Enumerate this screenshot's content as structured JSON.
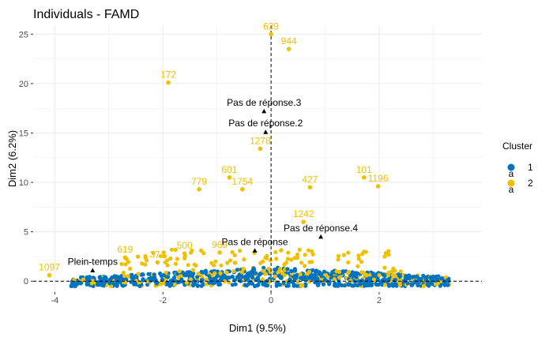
{
  "chart_data": {
    "type": "scatter",
    "title": "Individuals - FAMD",
    "xlabel": "Dim1 (9.5%)",
    "ylabel": "Dim2 (6.2%)",
    "xlim": [
      -4.4,
      3.9
    ],
    "ylim": [
      -1.1,
      25.9
    ],
    "x_ticks": [
      -4,
      -2,
      0,
      2
    ],
    "y_ticks": [
      0,
      5,
      10,
      15,
      20,
      25
    ],
    "grid": true,
    "legend": {
      "title": "Cluster",
      "position": "right",
      "entries": [
        {
          "label": "1",
          "color": "#0073C2"
        },
        {
          "label": "2",
          "color": "#EFC000"
        }
      ],
      "glyph": "a"
    },
    "colors": {
      "1": "#0073C2",
      "2": "#EFC000",
      "supplementary": "#000000"
    },
    "reference_lines": {
      "x": 0,
      "y": 0,
      "style": "dashed"
    },
    "labeled_points": [
      {
        "label": "639",
        "x": 0.0,
        "y": 25.0,
        "cluster": "2"
      },
      {
        "label": "944",
        "x": 0.33,
        "y": 23.5,
        "cluster": "2"
      },
      {
        "label": "172",
        "x": -1.9,
        "y": 20.1,
        "cluster": "2"
      },
      {
        "label": "1278",
        "x": -0.2,
        "y": 13.4,
        "cluster": "2"
      },
      {
        "label": "601",
        "x": -0.77,
        "y": 10.5,
        "cluster": "2"
      },
      {
        "label": "779",
        "x": -1.33,
        "y": 9.3,
        "cluster": "2"
      },
      {
        "label": "1754",
        "x": -0.53,
        "y": 9.3,
        "cluster": "2"
      },
      {
        "label": "427",
        "x": 0.72,
        "y": 9.5,
        "cluster": "2"
      },
      {
        "label": "101",
        "x": 1.72,
        "y": 10.5,
        "cluster": "2"
      },
      {
        "label": "1196",
        "x": 1.98,
        "y": 9.6,
        "cluster": "2"
      },
      {
        "label": "1242",
        "x": 0.6,
        "y": 6.0,
        "cluster": "2"
      },
      {
        "label": "500",
        "x": -1.6,
        "y": 2.8,
        "cluster": "2"
      },
      {
        "label": "619",
        "x": -2.7,
        "y": 2.4,
        "cluster": "2"
      },
      {
        "label": "969",
        "x": -0.95,
        "y": 2.9,
        "cluster": "2"
      },
      {
        "label": "371",
        "x": -2.1,
        "y": 1.9,
        "cluster": "2"
      },
      {
        "label": "1097",
        "x": -4.1,
        "y": 0.6,
        "cluster": "2"
      }
    ],
    "supplementary_points": [
      {
        "label": "Pas de réponse.3",
        "x": -0.13,
        "y": 17.2
      },
      {
        "label": "Pas de réponse.2",
        "x": -0.1,
        "y": 15.1
      },
      {
        "label": "Pas de réponse.4",
        "x": 0.92,
        "y": 4.5
      },
      {
        "label": "Pas de réponse",
        "x": -0.3,
        "y": 3.1
      },
      {
        "label": "Plein-temps",
        "x": -3.3,
        "y": 1.1
      }
    ]
  }
}
